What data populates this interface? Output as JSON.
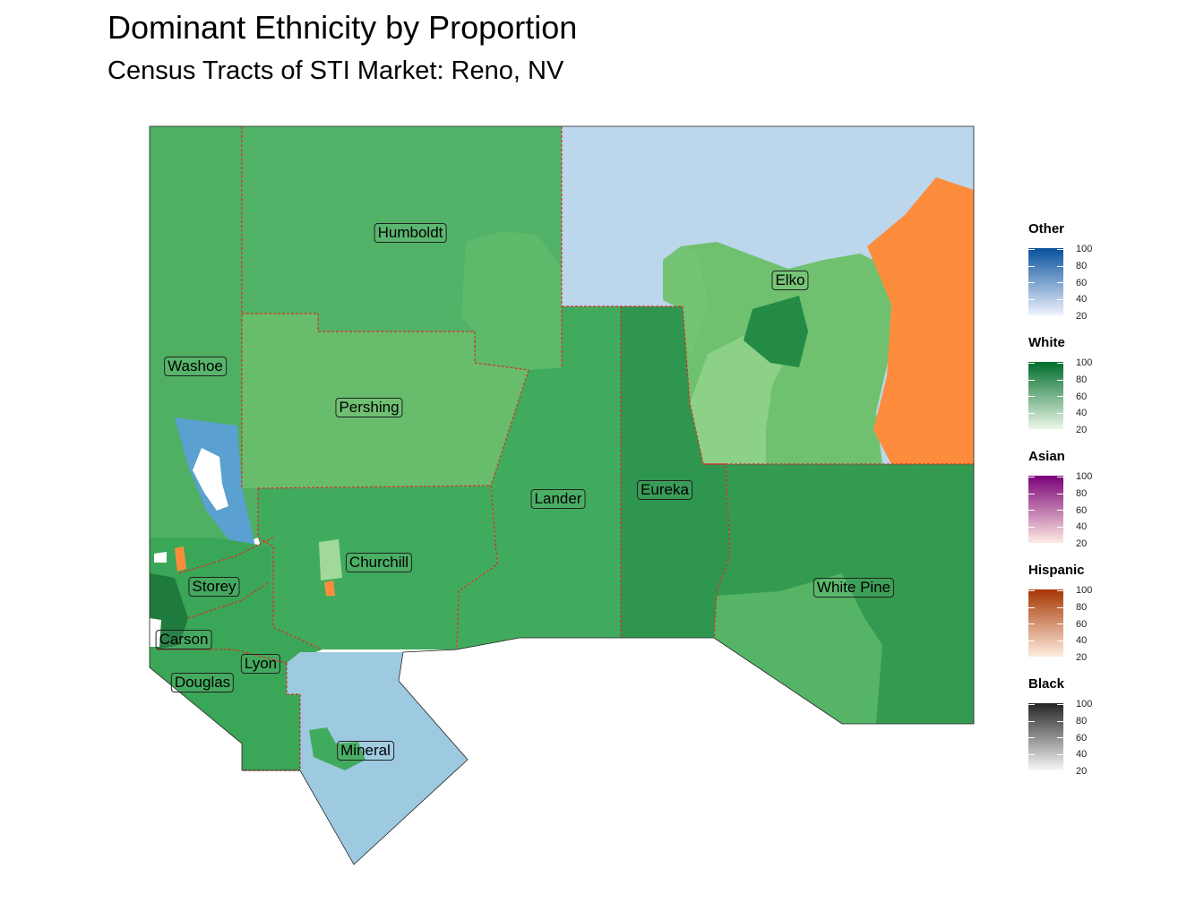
{
  "title": "Dominant Ethnicity by Proportion",
  "subtitle": "Census Tracts of STI Market: Reno, NV",
  "counties": [
    {
      "name": "Humboldt"
    },
    {
      "name": "Washoe"
    },
    {
      "name": "Pershing"
    },
    {
      "name": "Elko"
    },
    {
      "name": "Lander"
    },
    {
      "name": "Eureka"
    },
    {
      "name": "Churchill"
    },
    {
      "name": "Storey"
    },
    {
      "name": "White Pine"
    },
    {
      "name": "Carson"
    },
    {
      "name": "Lyon"
    },
    {
      "name": "Douglas"
    },
    {
      "name": "Mineral"
    }
  ],
  "legend": {
    "tick_labels": [
      "100",
      "80",
      "60",
      "40",
      "20"
    ],
    "groups": [
      {
        "name": "Other",
        "low_color": "#eff3ff",
        "high_color": "#08519c"
      },
      {
        "name": "White",
        "low_color": "#edf8e9",
        "high_color": "#006d2c"
      },
      {
        "name": "Asian",
        "low_color": "#feebe2",
        "high_color": "#7a0177"
      },
      {
        "name": "Hispanic",
        "low_color": "#feedde",
        "high_color": "#a63603"
      },
      {
        "name": "Black",
        "low_color": "#f7f7f7",
        "high_color": "#252525"
      }
    ]
  },
  "colors": {
    "county_border": "#d73027",
    "white_dominant_mid": "#41ab5d",
    "white_dominant_light": "#74c476",
    "white_dominant_dark": "#238b45",
    "other_dominant": "#9ecae1",
    "hispanic_dominant": "#fd8d3c"
  }
}
